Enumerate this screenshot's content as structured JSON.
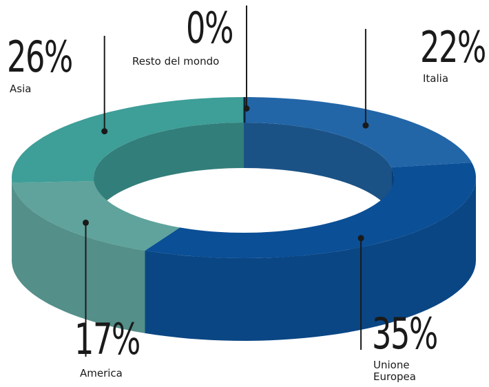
{
  "chart_data": {
    "type": "pie",
    "variant": "3d-donut",
    "title": "",
    "slices": [
      {
        "label": "Italia",
        "display_label": "Italia",
        "value": 22,
        "value_label": "22%",
        "color": "#2266a8"
      },
      {
        "label": "Unione Europea",
        "display_label": "Unione\nEuropea",
        "value": 35,
        "value_label": "35%",
        "color": "#0b4f96"
      },
      {
        "label": "America",
        "display_label": "America",
        "value": 17,
        "value_label": "17%",
        "color": "#5fa39c"
      },
      {
        "label": "Asia",
        "display_label": "Asia",
        "value": 26,
        "value_label": "26%",
        "color": "#3e9e98"
      },
      {
        "label": "Resto del mondo",
        "display_label": "Resto del mondo",
        "value": 0,
        "value_label": "0%",
        "color": "#0d2438"
      }
    ],
    "legend": "none"
  }
}
